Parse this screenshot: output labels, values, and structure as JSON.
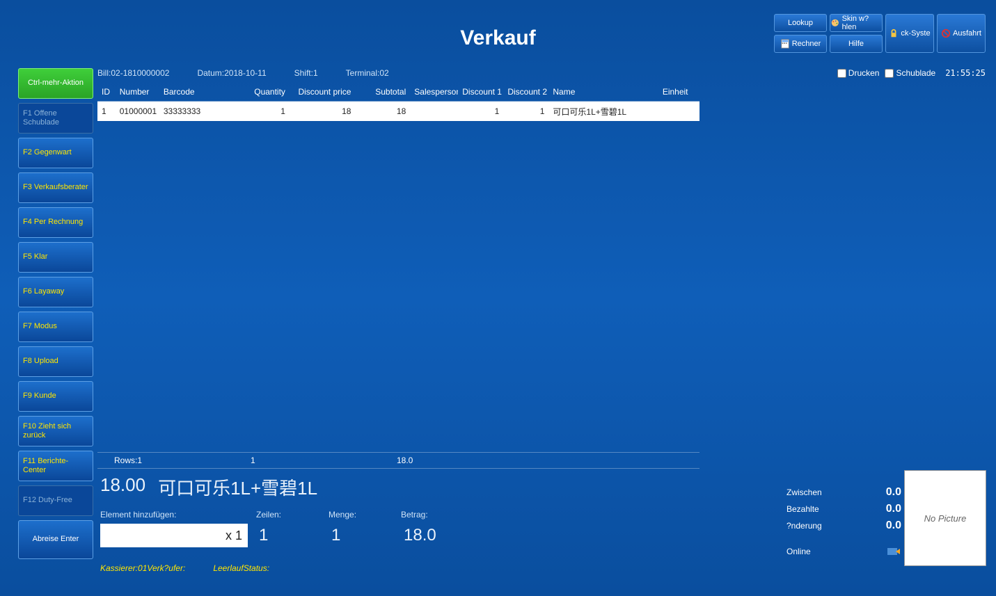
{
  "title": "Verkauf",
  "toolbar": {
    "lookup": "Lookup",
    "rechner": "Rechner",
    "skin": "Skin w?hlen",
    "hilfe": "Hilfe",
    "lock": "ck-Syste",
    "exit": "Ausfahrt"
  },
  "info": {
    "bill_label": "Bill:",
    "bill": "02-1810000002",
    "datum_label": "Datum:",
    "datum": "2018-10-11",
    "shift_label": "Shift:",
    "shift": "1",
    "terminal_label": "Terminal:",
    "terminal": "02",
    "print_label": "Drucken",
    "drawer_label": "Schublade",
    "clock": "21:55:25"
  },
  "sidebar": [
    {
      "key": "ctrl",
      "label": "Ctrl-mehr-Aktion",
      "variant": "green"
    },
    {
      "key": "f1",
      "label": "F1 Offene Schublade",
      "variant": "disabled"
    },
    {
      "key": "f2",
      "label": "F2 Gegenwart",
      "variant": ""
    },
    {
      "key": "f3",
      "label": "F3 Verkaufsberater",
      "variant": ""
    },
    {
      "key": "f4",
      "label": "F4 Per Rechnung",
      "variant": ""
    },
    {
      "key": "f5",
      "label": "F5 Klar",
      "variant": ""
    },
    {
      "key": "f6",
      "label": "F6 Layaway",
      "variant": ""
    },
    {
      "key": "f7",
      "label": "F7 Modus",
      "variant": ""
    },
    {
      "key": "f8",
      "label": "F8 Upload",
      "variant": ""
    },
    {
      "key": "f9",
      "label": "F9 Kunde",
      "variant": ""
    },
    {
      "key": "f10",
      "label": "F10 Zieht sich zurück",
      "variant": ""
    },
    {
      "key": "f11",
      "label": "F11 Berichte-Center",
      "variant": ""
    },
    {
      "key": "f12",
      "label": "F12 Duty-Free",
      "variant": "disabled"
    },
    {
      "key": "enter",
      "label": "Abreise Enter",
      "variant": "enter"
    }
  ],
  "table": {
    "columns": [
      "ID",
      "Number",
      "Barcode",
      "Quantity",
      "Discount price",
      "Subtotal",
      "Salesperson",
      "Discount 1",
      "Discount 2",
      "Name",
      "Einheit"
    ],
    "rows": [
      {
        "id": "1",
        "number": "01000001",
        "barcode": "33333333",
        "qty": "1",
        "dprice": "18",
        "subtotal": "18",
        "sales": "",
        "d1": "1",
        "d2": "1",
        "name": "可口可乐1L+雪碧1L",
        "unit": ""
      }
    ],
    "summary": {
      "rows_label": "Rows:",
      "rows": "1",
      "qty": "1",
      "total": "18.0"
    }
  },
  "detail": {
    "price": "18.00",
    "name": "可口可乐1L+雪碧1L",
    "add_label": "Element hinzufügen:",
    "zeilen_label": "Zeilen:",
    "menge_label": "Menge:",
    "betrag_label": "Betrag:",
    "item_input": "x 1",
    "zeilen": "1",
    "menge": "1",
    "betrag": "18.0"
  },
  "footer": {
    "kassierer_label": "Kassierer:",
    "kassierer": "01",
    "verk_label": "Verk?ufer:",
    "leerlauf_label": "Leerlauf",
    "status_label": "Status:"
  },
  "totals": {
    "zwischen_label": "Zwischen",
    "zwischen": "0.0",
    "bezahlte_label": "Bezahlte",
    "bezahlte": "0.0",
    "nderung_label": "?nderung",
    "nderung": "0.0",
    "online_label": "Online"
  },
  "nopic": "No Picture",
  "colors": {
    "bg": "#0a4e9e",
    "btn_top": "#2a79d6",
    "btn_bottom": "#0d4fa0",
    "accent": "#ffe600",
    "green": "#3fcf3a"
  }
}
